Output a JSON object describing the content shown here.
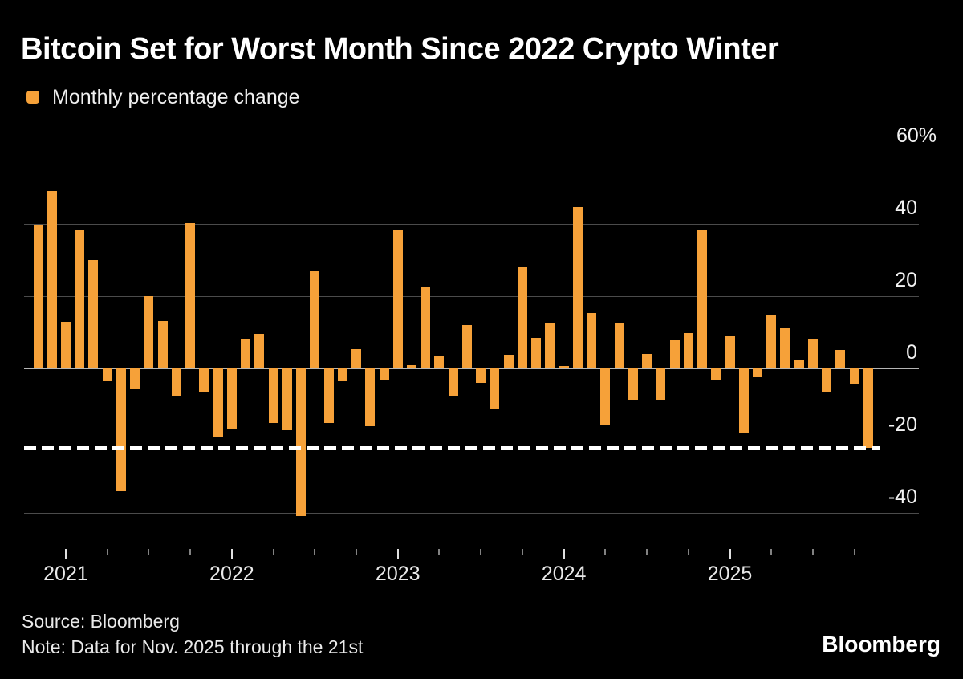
{
  "header": {
    "title": "Bitcoin Set for Worst Month Since 2022 Crypto Winter"
  },
  "legend": {
    "label": "Monthly percentage change",
    "swatch_color": "#F6A139"
  },
  "footer": {
    "source": "Source: Bloomberg",
    "note": "Note: Data for Nov. 2025 through the 21st"
  },
  "logo": "Bloomberg",
  "chart_data": {
    "type": "bar",
    "title": "Bitcoin Set for Worst Month Since 2022 Crypto Winter",
    "series_name": "Monthly percentage change",
    "bar_color": "#F6A139",
    "xlabel": "",
    "ylabel": "Monthly percentage change (%)",
    "ylim": [
      -46,
      62
    ],
    "grid": true,
    "legend_position": "top-left",
    "y_ticks": [
      {
        "label": "60%",
        "value": 60
      },
      {
        "label": "40",
        "value": 40
      },
      {
        "label": "20",
        "value": 20
      },
      {
        "label": "0",
        "value": 0
      },
      {
        "label": "-20",
        "value": -20
      },
      {
        "label": "-40",
        "value": -40
      }
    ],
    "x_year_labels": [
      "2021",
      "2022",
      "2023",
      "2024",
      "2025"
    ],
    "dashed_line": {
      "value": -22.0,
      "color": "#ffffff"
    },
    "points": [
      {
        "month": "Nov 2020",
        "value": 39.7
      },
      {
        "month": "Dec 2020",
        "value": 49.2
      },
      {
        "month": "Jan 2021",
        "value": 13.0
      },
      {
        "month": "Feb 2021",
        "value": 38.5
      },
      {
        "month": "Mar 2021",
        "value": 30.0
      },
      {
        "month": "Apr 2021",
        "value": -3.5
      },
      {
        "month": "May 2021",
        "value": -34.0
      },
      {
        "month": "Jun 2021",
        "value": -5.8
      },
      {
        "month": "Jul 2021",
        "value": 20.0
      },
      {
        "month": "Aug 2021",
        "value": 13.2
      },
      {
        "month": "Sep 2021",
        "value": -7.5
      },
      {
        "month": "Oct 2021",
        "value": 40.2
      },
      {
        "month": "Nov 2021",
        "value": -6.5
      },
      {
        "month": "Dec 2021",
        "value": -18.8
      },
      {
        "month": "Jan 2022",
        "value": -16.9
      },
      {
        "month": "Feb 2022",
        "value": 8.1
      },
      {
        "month": "Mar 2022",
        "value": 9.6
      },
      {
        "month": "Apr 2022",
        "value": -15.2
      },
      {
        "month": "May 2022",
        "value": -17.2
      },
      {
        "month": "Jun 2022",
        "value": -40.9
      },
      {
        "month": "Jul 2022",
        "value": 26.9
      },
      {
        "month": "Aug 2022",
        "value": -15.1
      },
      {
        "month": "Sep 2022",
        "value": -3.5
      },
      {
        "month": "Oct 2022",
        "value": 5.3
      },
      {
        "month": "Nov 2022",
        "value": -16.1
      },
      {
        "month": "Dec 2022",
        "value": -3.4
      },
      {
        "month": "Jan 2023",
        "value": 38.4
      },
      {
        "month": "Feb 2023",
        "value": 0.9
      },
      {
        "month": "Mar 2023",
        "value": 22.5
      },
      {
        "month": "Apr 2023",
        "value": 3.6
      },
      {
        "month": "May 2023",
        "value": -7.5
      },
      {
        "month": "Jun 2023",
        "value": 11.9
      },
      {
        "month": "Jul 2023",
        "value": -3.9
      },
      {
        "month": "Aug 2023",
        "value": -11.0
      },
      {
        "month": "Sep 2023",
        "value": 3.7
      },
      {
        "month": "Oct 2023",
        "value": 27.9
      },
      {
        "month": "Nov 2023",
        "value": 8.5
      },
      {
        "month": "Dec 2023",
        "value": 12.4
      },
      {
        "month": "Jan 2024",
        "value": 0.6
      },
      {
        "month": "Feb 2024",
        "value": 44.6
      },
      {
        "month": "Mar 2024",
        "value": 15.4
      },
      {
        "month": "Apr 2024",
        "value": -15.6
      },
      {
        "month": "May 2024",
        "value": 12.5
      },
      {
        "month": "Jun 2024",
        "value": -8.6
      },
      {
        "month": "Jul 2024",
        "value": 4.0
      },
      {
        "month": "Aug 2024",
        "value": -8.8
      },
      {
        "month": "Sep 2024",
        "value": 7.8
      },
      {
        "month": "Oct 2024",
        "value": 9.8
      },
      {
        "month": "Nov 2024",
        "value": 38.2
      },
      {
        "month": "Dec 2024",
        "value": -3.3
      },
      {
        "month": "Jan 2025",
        "value": 8.9
      },
      {
        "month": "Feb 2025",
        "value": -17.8
      },
      {
        "month": "Mar 2025",
        "value": -2.4
      },
      {
        "month": "Apr 2025",
        "value": 14.7
      },
      {
        "month": "May 2025",
        "value": 11.1
      },
      {
        "month": "Jun 2025",
        "value": 2.4
      },
      {
        "month": "Jul 2025",
        "value": 8.2
      },
      {
        "month": "Aug 2025",
        "value": -6.4
      },
      {
        "month": "Sep 2025",
        "value": 5.1
      },
      {
        "month": "Oct 2025",
        "value": -4.4
      },
      {
        "month": "Nov 2025",
        "value": -22.0
      }
    ]
  }
}
